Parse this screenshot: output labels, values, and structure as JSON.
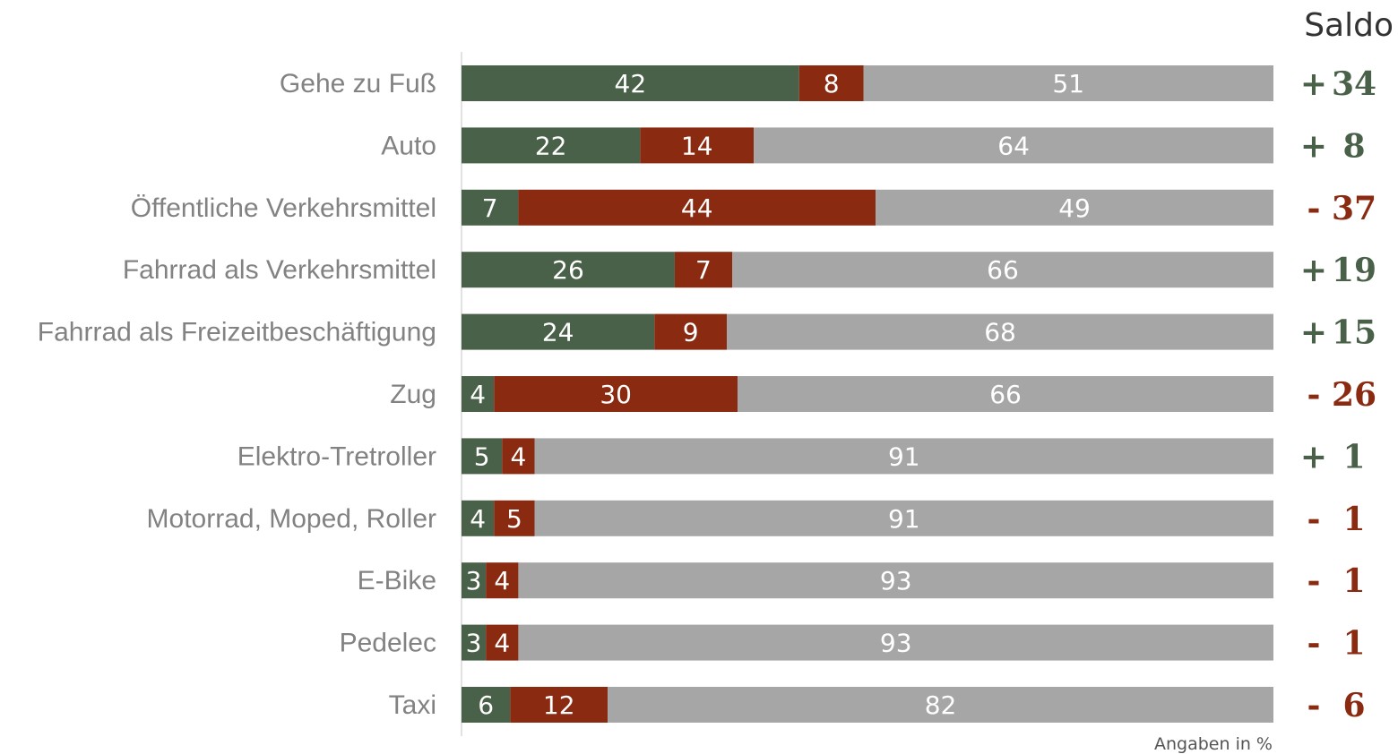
{
  "chart_data": {
    "type": "bar",
    "orientation": "horizontal",
    "stacked": true,
    "categories": [
      "Gehe zu Fuß",
      "Auto",
      "Öffentliche Verkehrsmittel",
      "Fahrrad als Verkehrsmittel",
      "Fahrrad als Freizeitbeschäftigung",
      "Zug",
      "Elektro-Tretroller",
      "Motorrad, Moped, Roller",
      "E-Bike",
      "Pedelec",
      "Taxi"
    ],
    "series": [
      {
        "values": [
          42,
          22,
          7,
          26,
          24,
          4,
          5,
          4,
          3,
          3,
          6
        ],
        "color": "#4a6149"
      },
      {
        "values": [
          8,
          14,
          44,
          7,
          9,
          30,
          4,
          5,
          4,
          4,
          12
        ],
        "color": "#8a2a11"
      },
      {
        "values": [
          51,
          64,
          49,
          66,
          68,
          66,
          91,
          91,
          93,
          93,
          82
        ],
        "color": "#a6a6a6"
      }
    ],
    "saldo_title": "Saldo",
    "saldo": [
      {
        "sign": "+",
        "value": "34"
      },
      {
        "sign": "+",
        "value": "8"
      },
      {
        "sign": "-",
        "value": "37"
      },
      {
        "sign": "+",
        "value": "19"
      },
      {
        "sign": "+",
        "value": "15"
      },
      {
        "sign": "-",
        "value": "26"
      },
      {
        "sign": "+",
        "value": "1"
      },
      {
        "sign": "-",
        "value": "1"
      },
      {
        "sign": "-",
        "value": "1"
      },
      {
        "sign": "-",
        "value": "1"
      },
      {
        "sign": "-",
        "value": "6"
      }
    ],
    "saldo_colors": {
      "positive": "#4a6149",
      "negative": "#8a2a11"
    },
    "note": "Angaben in %",
    "grid": false,
    "xlabel": "",
    "ylabel": ""
  }
}
